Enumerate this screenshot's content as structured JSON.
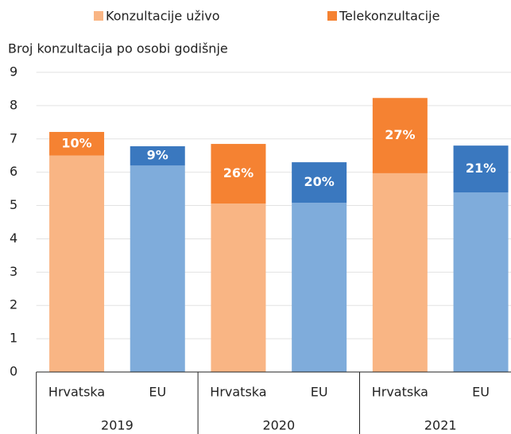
{
  "chart_data": {
    "type": "stacked_bar",
    "y_axis_label": "Broj konzultacija po osobi godišnje",
    "categories": [
      "Hrvatska",
      "EU",
      "Hrvatska",
      "EU",
      "Hrvatska",
      "EU"
    ],
    "groups": [
      "2019",
      "2020",
      "2021"
    ],
    "series": [
      {
        "name": "Konzultacije uživo",
        "color": "#f9b584",
        "bar_colors": [
          "#f9b584",
          "#7facdb",
          "#f9b584",
          "#7facdb",
          "#f9b584",
          "#7facdb"
        ],
        "values": [
          6.5,
          6.2,
          5.06,
          5.08,
          5.97,
          5.39
        ]
      },
      {
        "name": "Telekonzultacije",
        "color": "#f58232",
        "bar_colors": [
          "#f58232",
          "#3a78bf",
          "#f58232",
          "#3a78bf",
          "#f58232",
          "#3a78bf"
        ],
        "values": [
          0.71,
          0.58,
          1.79,
          1.22,
          2.26,
          1.41
        ],
        "share_labels": [
          "10%",
          "9%",
          "26%",
          "20%",
          "27%",
          "21%"
        ]
      }
    ],
    "ylim": [
      0,
      9
    ],
    "yticks": [
      0,
      1,
      2,
      3,
      4,
      5,
      6,
      7,
      8,
      9
    ],
    "grid": true,
    "legend": "top"
  }
}
